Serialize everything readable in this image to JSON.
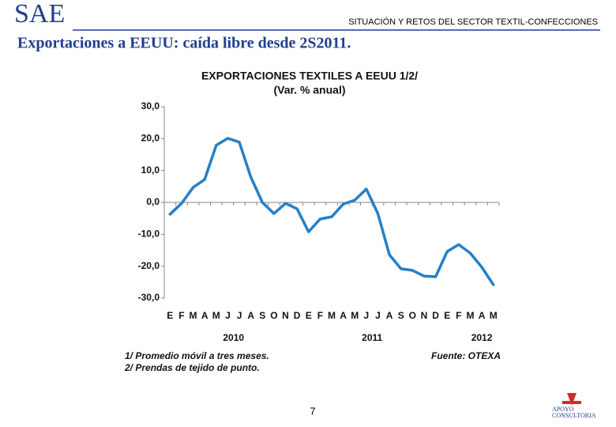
{
  "header": {
    "brand": "SAE",
    "section": "SITUACIÓN Y RETOS DEL SECTOR TEXTIL-CONFECCIONES"
  },
  "slide_title": "Exportaciones a EEUU: caída libre desde 2S2011.",
  "chart_data": {
    "type": "line",
    "title": "EXPORTACIONES TEXTILES A EEUU 1/2/",
    "subtitle": "(Var. % anual)",
    "categories": [
      "E",
      "F",
      "M",
      "A",
      "M",
      "J",
      "J",
      "A",
      "S",
      "O",
      "N",
      "D",
      "E",
      "F",
      "M",
      "A",
      "M",
      "J",
      "J",
      "A",
      "S",
      "O",
      "N",
      "D",
      "E",
      "F",
      "M",
      "A",
      "M"
    ],
    "years": [
      "2010",
      "2011",
      "2012"
    ],
    "values": [
      -3.7,
      -0.3,
      4.7,
      7.2,
      17.9,
      20.1,
      18.9,
      7.9,
      0,
      -3.5,
      -0.3,
      -2,
      -9.2,
      -5.2,
      -4.5,
      -0.5,
      0.7,
      4.2,
      -3.5,
      -16.4,
      -20.8,
      -21.3,
      -23.1,
      -23.3,
      -15.4,
      -13.2,
      -15.9,
      -20.3,
      -25.8
    ],
    "color": "#2580c8",
    "ylim": [
      -30,
      30
    ],
    "yticks": [
      {
        "value": 30,
        "label": "30,0"
      },
      {
        "value": 20,
        "label": "20,0"
      },
      {
        "value": 10,
        "label": "10,0"
      },
      {
        "value": 0,
        "label": "0,0"
      },
      {
        "value": -10,
        "label": "-10,0"
      },
      {
        "value": -20,
        "label": "-20,0"
      },
      {
        "value": -30,
        "label": "-30,0"
      }
    ],
    "grid": false
  },
  "notes": [
    "1/ Promedio móvil a tres meses.",
    "2/ Prendas de tejido de punto."
  ],
  "source": "Fuente:  OTEXA",
  "page_number": "7",
  "logo": [
    "APOYO",
    "CONSULTORIA"
  ]
}
